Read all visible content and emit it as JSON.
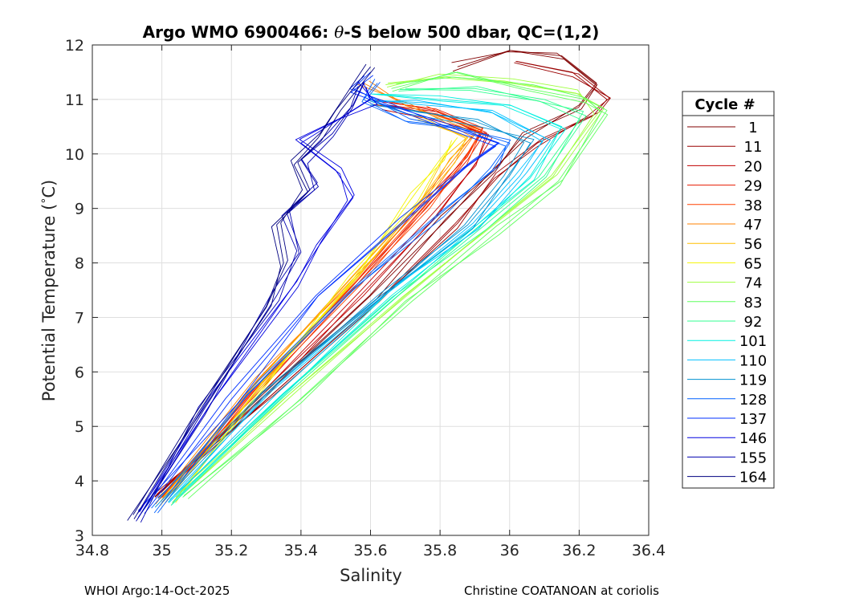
{
  "chart_data": {
    "type": "line",
    "title_prefix": "Argo WMO 6900466: ",
    "title_theta": "θ",
    "title_suffix": "-S below 500 dbar,  QC=(1,2)",
    "xlabel": "Salinity",
    "ylabel_text": "Potential Temperature (",
    "ylabel_degree": "°",
    "ylabel_unit": "C)",
    "xlim": [
      34.8,
      36.4
    ],
    "ylim": [
      3,
      12
    ],
    "xticks": [
      34.8,
      35,
      35.2,
      35.4,
      35.6,
      35.8,
      36,
      36.2,
      36.4
    ],
    "xtick_labels": [
      "34.8",
      "35",
      "35.2",
      "35.4",
      "35.6",
      "35.8",
      "36",
      "36.2",
      "36.4"
    ],
    "yticks": [
      3,
      4,
      5,
      6,
      7,
      8,
      9,
      10,
      11,
      12
    ],
    "ytick_labels": [
      "3",
      "4",
      "5",
      "6",
      "7",
      "8",
      "9",
      "10",
      "11",
      "12"
    ],
    "grid": true,
    "legend_title": "Cycle #",
    "legend_position": "outside-right",
    "legend_entries": [
      {
        "label": "1",
        "color": "#800000"
      },
      {
        "label": "11",
        "color": "#9a0000"
      },
      {
        "label": "20",
        "color": "#c00000"
      },
      {
        "label": "29",
        "color": "#e61a00"
      },
      {
        "label": "38",
        "color": "#ff4000"
      },
      {
        "label": "47",
        "color": "#ff8000"
      },
      {
        "label": "56",
        "color": "#ffbf00"
      },
      {
        "label": "65",
        "color": "#f5f500"
      },
      {
        "label": "74",
        "color": "#9fff40"
      },
      {
        "label": "83",
        "color": "#5fff5f"
      },
      {
        "label": "92",
        "color": "#30ff90"
      },
      {
        "label": "101",
        "color": "#00f0e0"
      },
      {
        "label": "110",
        "color": "#00c0ff"
      },
      {
        "label": "119",
        "color": "#0090d0"
      },
      {
        "label": "128",
        "color": "#0060ff"
      },
      {
        "label": "137",
        "color": "#0030ff"
      },
      {
        "label": "146",
        "color": "#0000e0"
      },
      {
        "label": "155",
        "color": "#0000b0"
      },
      {
        "label": "164",
        "color": "#000080"
      }
    ],
    "series": [
      {
        "name": "1",
        "color": "#800000",
        "s": [
          34.98,
          35.3,
          35.6,
          35.82,
          35.95,
          36.05,
          36.2,
          36.25,
          36.15,
          36.0,
          35.85
        ],
        "t": [
          3.7,
          5.6,
          7.4,
          8.8,
          9.7,
          10.3,
          10.9,
          11.3,
          11.8,
          11.9,
          11.6
        ]
      },
      {
        "name": "11",
        "color": "#9a0000",
        "s": [
          34.99,
          35.32,
          35.62,
          35.84,
          35.97,
          36.08,
          36.24,
          36.28,
          36.18,
          36.02
        ],
        "t": [
          3.7,
          5.6,
          7.3,
          8.7,
          9.6,
          10.2,
          10.7,
          11.0,
          11.5,
          11.7
        ]
      },
      {
        "name": "20",
        "color": "#c00000",
        "s": [
          35.0,
          35.3,
          35.58,
          35.78,
          35.9,
          35.95,
          35.8,
          35.65
        ],
        "t": [
          3.7,
          5.7,
          7.4,
          8.8,
          9.8,
          10.3,
          10.7,
          10.9
        ]
      },
      {
        "name": "29",
        "color": "#e61a00",
        "s": [
          35.0,
          35.28,
          35.55,
          35.76,
          35.88,
          35.93,
          35.78,
          35.62
        ],
        "t": [
          3.7,
          5.8,
          7.6,
          9.0,
          9.9,
          10.4,
          10.8,
          11.0
        ]
      },
      {
        "name": "38",
        "color": "#ff4000",
        "s": [
          35.01,
          35.29,
          35.56,
          35.77,
          35.86,
          35.92,
          35.75
        ],
        "t": [
          3.6,
          5.8,
          7.6,
          9.0,
          9.8,
          10.4,
          10.8
        ]
      },
      {
        "name": "47",
        "color": "#ff8000",
        "s": [
          35.0,
          35.27,
          35.54,
          35.74,
          35.84,
          35.9,
          35.7,
          35.58
        ],
        "t": [
          3.6,
          5.8,
          7.7,
          9.1,
          9.9,
          10.4,
          10.9,
          11.3
        ]
      },
      {
        "name": "56",
        "color": "#ffbf00",
        "s": [
          35.01,
          35.29,
          35.56,
          35.75,
          35.83,
          35.88,
          35.72
        ],
        "t": [
          3.6,
          5.8,
          7.7,
          9.2,
          9.9,
          10.3,
          10.7
        ]
      },
      {
        "name": "65",
        "color": "#f5f500",
        "s": [
          35.03,
          35.3,
          35.55,
          35.72,
          35.8,
          35.85
        ],
        "t": [
          3.6,
          5.8,
          7.7,
          9.2,
          9.9,
          10.3
        ]
      },
      {
        "name": "74",
        "color": "#9fff40",
        "s": [
          35.05,
          35.38,
          35.7,
          35.95,
          36.12,
          36.26,
          36.2,
          36.0,
          35.8,
          35.65
        ],
        "t": [
          3.7,
          5.6,
          7.4,
          8.7,
          9.6,
          10.8,
          11.1,
          11.3,
          11.4,
          11.3
        ]
      },
      {
        "name": "83",
        "color": "#5fff5f",
        "s": [
          35.06,
          35.4,
          35.72,
          35.97,
          36.14,
          36.28,
          36.22,
          36.05,
          35.85,
          35.66
        ],
        "t": [
          3.7,
          5.5,
          7.3,
          8.6,
          9.5,
          10.8,
          11.0,
          11.2,
          11.5,
          11.2
        ]
      },
      {
        "name": "92",
        "color": "#30ff90",
        "s": [
          35.04,
          35.36,
          35.68,
          35.93,
          36.1,
          36.22,
          36.1,
          35.9,
          35.7
        ],
        "t": [
          3.7,
          5.6,
          7.4,
          8.7,
          9.6,
          10.7,
          11.0,
          11.2,
          11.2
        ]
      },
      {
        "name": "101",
        "color": "#00f0e0",
        "s": [
          35.03,
          35.35,
          35.66,
          35.92,
          36.06,
          36.15,
          36.0,
          35.8,
          35.62
        ],
        "t": [
          3.6,
          5.6,
          7.4,
          8.7,
          9.6,
          10.5,
          10.9,
          11.0,
          11.1
        ]
      },
      {
        "name": "110",
        "color": "#00c0ff",
        "s": [
          35.02,
          35.33,
          35.64,
          35.9,
          36.03,
          36.1,
          35.95,
          35.75,
          35.6
        ],
        "t": [
          3.6,
          5.6,
          7.4,
          8.7,
          9.6,
          10.3,
          10.8,
          10.9,
          11.0
        ]
      },
      {
        "name": "119",
        "color": "#0090d0",
        "s": [
          35.0,
          35.3,
          35.62,
          35.88,
          36.0,
          36.06,
          35.9,
          35.72,
          35.6
        ],
        "t": [
          3.6,
          5.6,
          7.4,
          8.7,
          9.6,
          10.2,
          10.6,
          10.8,
          10.9
        ]
      },
      {
        "name": "128",
        "color": "#0060ff",
        "s": [
          34.97,
          35.25,
          35.55,
          35.8,
          35.95,
          36.0,
          35.85,
          35.7,
          35.58,
          35.62
        ],
        "t": [
          3.5,
          5.6,
          7.5,
          8.9,
          9.7,
          10.2,
          10.5,
          10.6,
          11.0,
          11.3
        ]
      },
      {
        "name": "137",
        "color": "#0030ff",
        "s": [
          34.95,
          35.2,
          35.45,
          35.7,
          35.88,
          35.97,
          35.8,
          35.65,
          35.55,
          35.6
        ],
        "t": [
          3.4,
          5.5,
          7.4,
          8.8,
          9.8,
          10.2,
          10.6,
          10.9,
          11.2,
          11.5
        ]
      },
      {
        "name": "146",
        "color": "#0000e0",
        "s": [
          34.93,
          35.15,
          35.38,
          35.45,
          35.55,
          35.5,
          35.4,
          35.5,
          35.6,
          35.58
        ],
        "t": [
          3.4,
          5.5,
          7.6,
          8.3,
          9.2,
          9.7,
          10.2,
          10.6,
          11.0,
          11.3
        ]
      },
      {
        "name": "155",
        "color": "#0000b0",
        "s": [
          34.93,
          35.12,
          35.33,
          35.4,
          35.36,
          35.45,
          35.4,
          35.48,
          35.55,
          35.58
        ],
        "t": [
          3.3,
          5.3,
          7.4,
          8.2,
          8.9,
          9.4,
          9.9,
          10.4,
          10.9,
          11.3
        ]
      },
      {
        "name": "164",
        "color": "#000080",
        "s": [
          34.92,
          35.1,
          35.3,
          35.35,
          35.33,
          35.42,
          35.38,
          35.45,
          35.5,
          35.6
        ],
        "t": [
          3.3,
          5.2,
          7.2,
          8.0,
          8.7,
          9.3,
          9.8,
          10.3,
          10.8,
          11.6
        ]
      }
    ]
  },
  "footer": {
    "left": "WHOI Argo:14-Oct-2025",
    "right": "Christine COATANOAN at coriolis"
  }
}
